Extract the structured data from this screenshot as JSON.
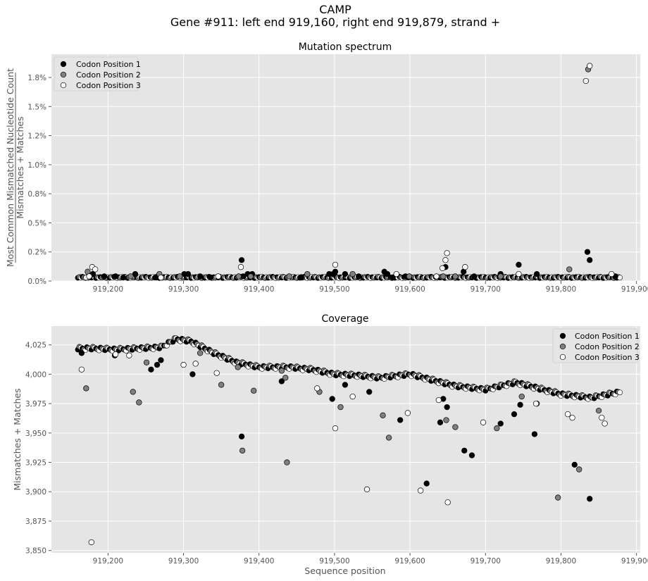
{
  "figure": {
    "title": "CAMP",
    "subtitle": "Gene #911: left end 919,160, right end 919,879, strand +"
  },
  "series_colors": {
    "Codon Position 1": "#000000",
    "Codon Position 2": "#808080",
    "Codon Position 3": "#ffffff"
  },
  "chart_data": [
    {
      "type": "scatter",
      "title": "Mutation spectrum",
      "xlabel": "",
      "ylabel_numerator": "Most Common Mismatched Nucleotide Count",
      "ylabel_denominator": "Mismatches + Matches",
      "xlim": [
        919125,
        919905
      ],
      "ylim": [
        0,
        0.0195
      ],
      "xticks": [
        919200,
        919300,
        919400,
        919500,
        919600,
        919700,
        919800,
        919900
      ],
      "xtick_labels": [
        "919,200",
        "919,300",
        "919,400",
        "919,500",
        "919,600",
        "919,700",
        "919,800",
        "919,900"
      ],
      "yticks": [
        0,
        0.0025,
        0.005,
        0.0075,
        0.01,
        0.0125,
        0.015,
        0.0175
      ],
      "ytick_labels": [
        "0.0%",
        "0.2%",
        "0.5%",
        "0.8%",
        "1.0%",
        "1.2%",
        "1.5%",
        "1.8%"
      ],
      "legend_position": "top-left",
      "grid": true,
      "baseline": 0.00025,
      "series": [
        {
          "name": "Codon Position 1",
          "x": [
            919180,
            919195,
            919210,
            919220,
            919236,
            919264,
            919301,
            919306,
            919322,
            919336,
            919377,
            919379,
            919385,
            919391,
            919456,
            919493,
            919498,
            919501,
            919514,
            919532,
            919566,
            919570,
            919577,
            919594,
            919647,
            919671,
            919685,
            919720,
            919744,
            919768,
            919835,
            919838,
            919872
          ],
          "y": [
            0.0006,
            0.0004,
            0.0004,
            0.0003,
            0.0006,
            0.0003,
            0.0006,
            0.0006,
            0.0004,
            0.0003,
            0.0018,
            0.0004,
            0.0006,
            0.0006,
            0.0003,
            0.0006,
            0.0006,
            0.0008,
            0.0006,
            0.0004,
            0.0008,
            0.0006,
            0.0003,
            0.0004,
            0.0012,
            0.0008,
            0.0004,
            0.0006,
            0.0014,
            0.0006,
            0.0025,
            0.0018,
            0.0004
          ]
        },
        {
          "name": "Codon Position 2",
          "x": [
            919173,
            919176,
            919230,
            919268,
            919295,
            919373,
            919389,
            919440,
            919464,
            919524,
            919599,
            919644,
            919660,
            919720,
            919811,
            919836
          ],
          "y": [
            0.0008,
            0.0004,
            0.0004,
            0.0006,
            0.0004,
            0.0004,
            0.0004,
            0.0004,
            0.0006,
            0.0006,
            0.0004,
            0.0004,
            0.0004,
            0.0004,
            0.001,
            0.0182
          ],
          "extra_note": ""
        },
        {
          "name": "Codon Position 3",
          "x": [
            919171,
            919175,
            919179,
            919183,
            919270,
            919346,
            919376,
            919501,
            919582,
            919635,
            919643,
            919647,
            919649,
            919673,
            919744,
            919833,
            919838,
            919867
          ],
          "y": [
            0.0003,
            0.0004,
            0.0012,
            0.001,
            0.0003,
            0.0004,
            0.0012,
            0.0014,
            0.0006,
            0.0004,
            0.0011,
            0.0018,
            0.0024,
            0.0012,
            0.0006,
            0.0172,
            0.0185,
            0.0006
          ]
        }
      ]
    },
    {
      "type": "scatter",
      "title": "Coverage",
      "xlabel": "Sequence position",
      "ylabel": "Mismatches + Matches",
      "xlim": [
        919125,
        919905
      ],
      "ylim": [
        3848,
        4041
      ],
      "xticks": [
        919200,
        919300,
        919400,
        919500,
        919600,
        919700,
        919800,
        919900
      ],
      "xtick_labels": [
        "919,200",
        "919,300",
        "919,400",
        "919,500",
        "919,600",
        "919,700",
        "919,800",
        "919,900"
      ],
      "yticks": [
        3850,
        3875,
        3900,
        3925,
        3950,
        3975,
        4000,
        4025
      ],
      "ytick_labels": [
        "3,850",
        "3,875",
        "3,900",
        "3,925",
        "3,950",
        "3,975",
        "4,000",
        "4,025"
      ],
      "legend_position": "top-right",
      "grid": true,
      "trend": {
        "x": [
          919160,
          919180,
          919210,
          919240,
          919270,
          919290,
          919310,
          919340,
          919370,
          919400,
          919440,
          919470,
          919500,
          919530,
          919560,
          919600,
          919630,
          919660,
          919700,
          919740,
          919770,
          919800,
          919840,
          919879
        ],
        "y": [
          4022,
          4022,
          4021,
          4022,
          4023,
          4030,
          4028,
          4018,
          4010,
          4006,
          4006,
          4004,
          4000,
          3999,
          3997,
          4000,
          3995,
          3990,
          3987,
          3993,
          3988,
          3983,
          3980,
          3985
        ]
      },
      "series": [
        {
          "name": "Codon Position 1",
          "x": [
            919165,
            919209,
            919257,
            919265,
            919270,
            919312,
            919377,
            919430,
            919497,
            919514,
            919546,
            919587,
            919622,
            919640,
            919644,
            919649,
            919672,
            919682,
            919720,
            919738,
            919746,
            919765,
            919818,
            919838
          ],
          "y": [
            4018,
            4016,
            4004,
            4008,
            4012,
            4000,
            3947,
            3994,
            3979,
            3991,
            3985,
            3961,
            3907,
            3959,
            3979,
            3972,
            3935,
            3931,
            3958,
            3966,
            3974,
            3949,
            3923,
            3894
          ]
        },
        {
          "name": "Codon Position 2",
          "x": [
            919171,
            919233,
            919241,
            919251,
            919322,
            919350,
            919372,
            919378,
            919393,
            919430,
            919435,
            919437,
            919480,
            919508,
            919564,
            919572,
            919648,
            919660,
            919715,
            919748,
            919768,
            919796,
            919824,
            919850
          ],
          "y": [
            3988,
            3985,
            3976,
            4010,
            4018,
            3991,
            4006,
            3935,
            3986,
            4003,
            3997,
            3925,
            3985,
            3972,
            3965,
            3946,
            3961,
            3955,
            3954,
            3981,
            3975,
            3895,
            3919,
            3969
          ]
        },
        {
          "name": "Codon Position 3",
          "x": [
            919165,
            919178,
            919210,
            919228,
            919300,
            919316,
            919344,
            919477,
            919501,
            919524,
            919543,
            919597,
            919614,
            919638,
            919650,
            919697,
            919767,
            919809,
            919815,
            919854,
            919858
          ],
          "y": [
            4004,
            3857,
            4017,
            4016,
            4008,
            4009,
            4001,
            3988,
            3954,
            3981,
            3902,
            3967,
            3901,
            3978,
            3891,
            3959,
            3975,
            3966,
            3963,
            3963,
            3958
          ]
        }
      ]
    }
  ]
}
